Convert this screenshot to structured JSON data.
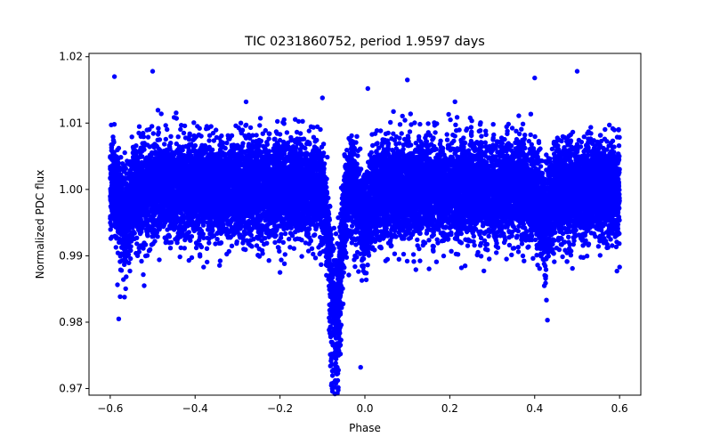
{
  "chart_data": {
    "type": "scatter",
    "title": "TIC 0231860752, period 1.9597 days",
    "xlabel": "Phase",
    "ylabel": "Normalized PDC flux",
    "xlim": [
      -0.65,
      0.65
    ],
    "ylim": [
      0.969,
      1.0205
    ],
    "xticks": [
      -0.6,
      -0.4,
      -0.2,
      0.0,
      0.2,
      0.4,
      0.6
    ],
    "xtick_labels": [
      "−0.6",
      "−0.4",
      "−0.2",
      "0.0",
      "0.2",
      "0.4",
      "0.6"
    ],
    "yticks": [
      0.97,
      0.98,
      0.99,
      1.0,
      1.01,
      1.02
    ],
    "ytick_labels": [
      "0.97",
      "0.98",
      "0.99",
      "1.00",
      "1.01",
      "1.02"
    ],
    "grid": false,
    "marker_color": "#0000ff",
    "series": [
      {
        "name": "PDC flux",
        "phase_range": [
          -0.6,
          0.6
        ],
        "baseline_flux": 1.0,
        "baseline_scatter_1sigma": 0.0035,
        "primary_eclipse": {
          "phase": -0.07,
          "min_flux": 0.971
        },
        "secondary_eclipse": {
          "phase": 0.0,
          "min_flux": 0.973
        },
        "wrapped_eclipse_repeats": [
          {
            "phase": -0.565,
            "min_flux": 0.98
          },
          {
            "phase": 0.425,
            "min_flux": 0.98
          }
        ],
        "high_flux_peaks": [
          {
            "phase": -0.5,
            "max_flux": 1.018
          },
          {
            "phase": 0.5,
            "max_flux": 1.018
          },
          {
            "phase": -0.59,
            "max_flux": 1.017
          },
          {
            "phase": 0.4,
            "max_flux": 1.017
          },
          {
            "phase": 0.1,
            "max_flux": 1.0165
          }
        ],
        "sample_points": [
          [
            -0.59,
            1.017
          ],
          [
            -0.5,
            1.0178
          ],
          [
            0.5,
            1.0178
          ],
          [
            0.4,
            1.0168
          ],
          [
            0.1,
            1.0165
          ],
          [
            0.007,
            1.0152
          ],
          [
            -0.07,
            0.9712
          ],
          [
            -0.01,
            0.9732
          ],
          [
            -0.58,
            0.9805
          ],
          [
            0.43,
            0.9803
          ],
          [
            -0.52,
            0.9855
          ],
          [
            0.6,
            0.9883
          ],
          [
            -0.38,
            0.9883
          ],
          [
            -0.2,
            0.9875
          ],
          [
            -0.28,
            1.0132
          ],
          [
            -0.1,
            1.0138
          ]
        ]
      }
    ]
  }
}
